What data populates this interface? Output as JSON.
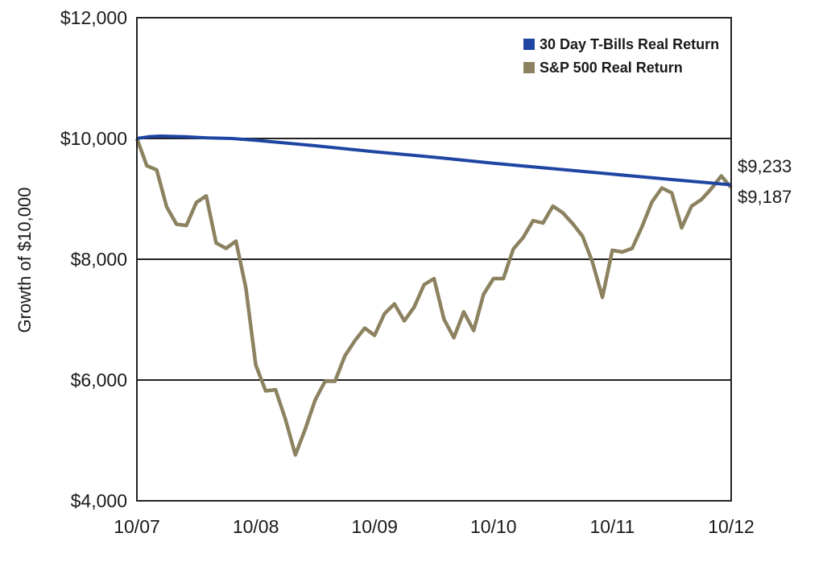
{
  "chart_data": {
    "type": "line",
    "ylabel": "Growth of $10,000",
    "ylim": [
      4000,
      12000
    ],
    "y_ticks": [
      "$12,000",
      "$10,000",
      "$8,000",
      "$6,000",
      "$4,000"
    ],
    "y_tick_values": [
      12000,
      10000,
      8000,
      6000,
      4000
    ],
    "x_ticks": [
      "10/07",
      "10/08",
      "10/09",
      "10/10",
      "10/11",
      "10/12"
    ],
    "grid": "horizontal",
    "legend_position": "top-right",
    "series": [
      {
        "name": "30 Day T-Bills Real Return",
        "color": "#1f45a3",
        "x": [
          0,
          0.1,
          0.2,
          0.4,
          0.6,
          0.8,
          1.0,
          1.5,
          2.0,
          2.5,
          3.0,
          3.5,
          4.0,
          4.5,
          5.0
        ],
        "values": [
          10000,
          10030,
          10040,
          10030,
          10010,
          10000,
          9970,
          9880,
          9780,
          9690,
          9590,
          9500,
          9410,
          9320,
          9233
        ],
        "end_label": "$9,233"
      },
      {
        "name": "S&P 500 Real Return",
        "color": "#8c8260",
        "x": [
          0,
          0.0833,
          0.1667,
          0.25,
          0.3333,
          0.4167,
          0.5,
          0.5833,
          0.6667,
          0.75,
          0.8333,
          0.9167,
          1.0,
          1.0833,
          1.1667,
          1.25,
          1.3333,
          1.4167,
          1.5,
          1.5833,
          1.6667,
          1.75,
          1.8333,
          1.9167,
          2.0,
          2.0833,
          2.1667,
          2.25,
          2.3333,
          2.4167,
          2.5,
          2.5833,
          2.6667,
          2.75,
          2.8333,
          2.9167,
          3.0,
          3.0833,
          3.1667,
          3.25,
          3.3333,
          3.4167,
          3.5,
          3.5833,
          3.6667,
          3.75,
          3.8333,
          3.9167,
          4.0,
          4.0833,
          4.1667,
          4.25,
          4.3333,
          4.4167,
          4.5,
          4.5833,
          4.6667,
          4.75,
          4.8333,
          4.9167,
          5.0
        ],
        "values": [
          10000,
          9550,
          9480,
          8870,
          8580,
          8560,
          8940,
          9050,
          8270,
          8180,
          8300,
          7530,
          6250,
          5820,
          5840,
          5350,
          4760,
          5190,
          5670,
          5980,
          5980,
          6400,
          6650,
          6860,
          6740,
          7100,
          7260,
          6980,
          7210,
          7580,
          7680,
          7010,
          6700,
          7130,
          6820,
          7420,
          7680,
          7680,
          8170,
          8360,
          8640,
          8600,
          8880,
          8770,
          8590,
          8380,
          7950,
          7370,
          8150,
          8120,
          8180,
          8540,
          8950,
          9180,
          9100,
          8520,
          8880,
          8990,
          9170,
          9380,
          9187
        ],
        "end_label": "$9,187"
      }
    ]
  }
}
